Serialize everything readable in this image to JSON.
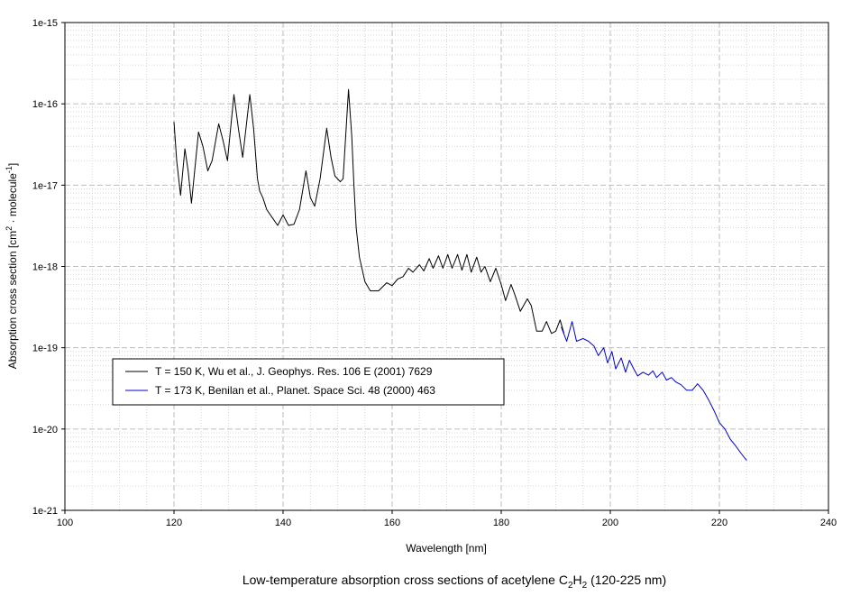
{
  "chart_data": {
    "type": "line",
    "caption": {
      "prefix": "Low-temperature absorption cross sections of acetylene C",
      "sub1": "2",
      "mid": "H",
      "sub2": "2",
      "suffix": " (120-225 nm)"
    },
    "xlabel": "Wavelength [nm]",
    "ylabel": {
      "prefix": "Absorption cross section [cm",
      "sup1": "2",
      "mid": " · molecule",
      "sup2": "-1",
      "suffix": "]"
    },
    "x_range": [
      100,
      240
    ],
    "y_scale": "log",
    "y_range": [
      1e-21,
      1e-15
    ],
    "x_ticks": [
      "100",
      "120",
      "140",
      "160",
      "180",
      "200",
      "220",
      "240"
    ],
    "y_ticks": [
      "1e-21",
      "1e-20",
      "1e-19",
      "1e-18",
      "1e-17",
      "1e-16",
      "1e-15"
    ],
    "grid": true,
    "legend_position": "lower-left",
    "series": [
      {
        "name": "T = 150 K, Wu et al., J. Geophys. Res. 106 E (2001) 7629",
        "color": "#000000",
        "points": [
          [
            120.0,
            6e-17
          ],
          [
            120.5,
            2e-17
          ],
          [
            121.2,
            7.5e-18
          ],
          [
            122.0,
            2.8e-17
          ],
          [
            122.6,
            1.5e-17
          ],
          [
            123.2,
            6e-18
          ],
          [
            124.5,
            4.5e-17
          ],
          [
            125.3,
            3e-17
          ],
          [
            126.2,
            1.5e-17
          ],
          [
            127.0,
            2e-17
          ],
          [
            128.2,
            5.7e-17
          ],
          [
            129.0,
            3.5e-17
          ],
          [
            129.8,
            2e-17
          ],
          [
            131.0,
            1.3e-16
          ],
          [
            131.8,
            5e-17
          ],
          [
            132.6,
            2.2e-17
          ],
          [
            133.9,
            1.3e-16
          ],
          [
            134.6,
            5e-17
          ],
          [
            135.3,
            1.2e-17
          ],
          [
            135.7,
            8.5e-18
          ],
          [
            136.3,
            7e-18
          ],
          [
            137.0,
            5e-18
          ],
          [
            138.0,
            4e-18
          ],
          [
            139.0,
            3.2e-18
          ],
          [
            140.0,
            4.3e-18
          ],
          [
            141.0,
            3.2e-18
          ],
          [
            142.0,
            3.3e-18
          ],
          [
            143.0,
            5e-18
          ],
          [
            144.2,
            1.5e-17
          ],
          [
            145.0,
            7e-18
          ],
          [
            145.8,
            5.5e-18
          ],
          [
            146.8,
            1.2e-17
          ],
          [
            148.0,
            5e-17
          ],
          [
            148.8,
            2.2e-17
          ],
          [
            149.5,
            1.3e-17
          ],
          [
            150.5,
            1.1e-17
          ],
          [
            151.0,
            1.2e-17
          ],
          [
            152.0,
            1.5e-16
          ],
          [
            152.6,
            4e-17
          ],
          [
            153.0,
            1e-17
          ],
          [
            153.4,
            3e-18
          ],
          [
            154.0,
            1.3e-18
          ],
          [
            155.0,
            6.5e-19
          ],
          [
            156.0,
            5e-19
          ],
          [
            157.5,
            5e-19
          ],
          [
            159.0,
            6.3e-19
          ],
          [
            160.0,
            5.8e-19
          ],
          [
            161.0,
            7e-19
          ],
          [
            162.0,
            7.5e-19
          ],
          [
            163.0,
            9.5e-19
          ],
          [
            163.8,
            8.5e-19
          ],
          [
            165.0,
            1.05e-18
          ],
          [
            165.8,
            8.8e-19
          ],
          [
            166.8,
            1.25e-18
          ],
          [
            167.5,
            9.5e-19
          ],
          [
            168.5,
            1.35e-18
          ],
          [
            169.3,
            9.5e-19
          ],
          [
            170.2,
            1.4e-18
          ],
          [
            171.0,
            9.5e-19
          ],
          [
            172.0,
            1.4e-18
          ],
          [
            172.8,
            9e-19
          ],
          [
            173.7,
            1.4e-18
          ],
          [
            174.5,
            8.5e-19
          ],
          [
            175.5,
            1.3e-18
          ],
          [
            176.3,
            8.5e-19
          ],
          [
            177.0,
            1e-18
          ],
          [
            178.0,
            6.5e-19
          ],
          [
            179.0,
            9.5e-19
          ],
          [
            180.0,
            6e-19
          ],
          [
            180.8,
            3.8e-19
          ],
          [
            181.8,
            6e-19
          ],
          [
            182.5,
            4.5e-19
          ],
          [
            183.5,
            2.8e-19
          ],
          [
            184.8,
            4e-19
          ],
          [
            185.5,
            3.3e-19
          ],
          [
            186.5,
            1.6e-19
          ],
          [
            187.5,
            1.6e-19
          ],
          [
            188.3,
            2.1e-19
          ],
          [
            189.2,
            1.5e-19
          ],
          [
            190.0,
            1.6e-19
          ],
          [
            190.8,
            2.2e-19
          ],
          [
            191.5,
            1.5e-19
          ]
        ]
      },
      {
        "name": "T = 173 K, Benilan et al., Planet. Space Sci. 48 (2000) 463",
        "color": "#0000cc",
        "points": [
          [
            191.0,
            1.8e-19
          ],
          [
            192.0,
            1.2e-19
          ],
          [
            193.0,
            2.1e-19
          ],
          [
            193.8,
            1.2e-19
          ],
          [
            195.0,
            1.3e-19
          ],
          [
            196.0,
            1.2e-19
          ],
          [
            197.0,
            1.05e-19
          ],
          [
            197.8,
            8e-20
          ],
          [
            198.8,
            1e-19
          ],
          [
            199.5,
            6.5e-20
          ],
          [
            200.3,
            9e-20
          ],
          [
            201.0,
            5.5e-20
          ],
          [
            202.0,
            7.5e-20
          ],
          [
            202.8,
            5e-20
          ],
          [
            203.5,
            7e-20
          ],
          [
            204.3,
            5.5e-20
          ],
          [
            205.0,
            4.5e-20
          ],
          [
            206.0,
            5e-20
          ],
          [
            207.0,
            4.6e-20
          ],
          [
            207.8,
            5.2e-20
          ],
          [
            208.5,
            4.3e-20
          ],
          [
            209.5,
            5e-20
          ],
          [
            210.3,
            4e-20
          ],
          [
            211.2,
            4.3e-20
          ],
          [
            212.0,
            3.8e-20
          ],
          [
            213.0,
            3.5e-20
          ],
          [
            214.0,
            3e-20
          ],
          [
            215.0,
            3e-20
          ],
          [
            216.0,
            3.6e-20
          ],
          [
            217.0,
            3e-20
          ],
          [
            218.0,
            2.3e-20
          ],
          [
            219.0,
            1.7e-20
          ],
          [
            220.0,
            1.2e-20
          ],
          [
            221.0,
            1e-20
          ],
          [
            222.0,
            7.5e-21
          ],
          [
            223.0,
            6.2e-21
          ],
          [
            224.0,
            5e-21
          ],
          [
            225.0,
            4.1e-21
          ]
        ]
      }
    ]
  }
}
